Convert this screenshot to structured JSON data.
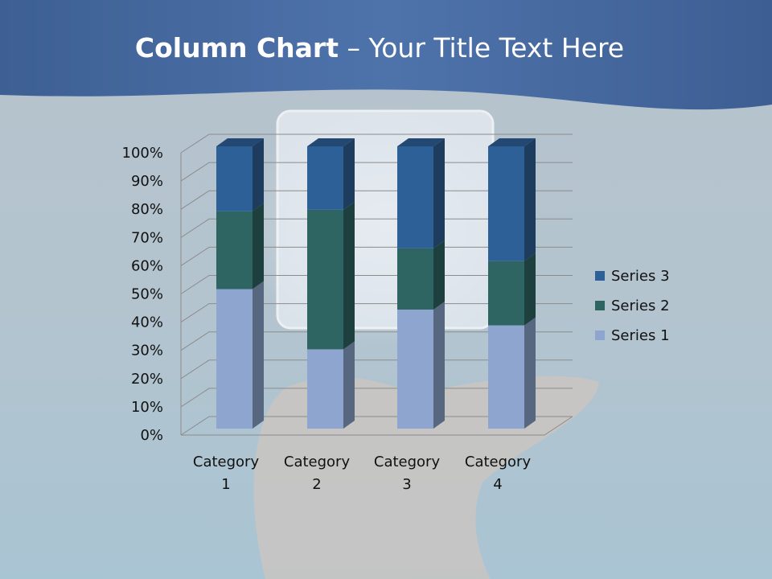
{
  "slide": {
    "title_bold": "Column Chart",
    "title_rest": " – Your Title Text Here"
  },
  "chart_data": {
    "type": "bar",
    "subtype": "stacked-100-percent-3d-column",
    "title": "",
    "categories": [
      "Category 1",
      "Category 2",
      "Category 3",
      "Category 4"
    ],
    "category_lines": [
      [
        "Category",
        "1"
      ],
      [
        "Category",
        "2"
      ],
      [
        "Category",
        "3"
      ],
      [
        "Category",
        "4"
      ]
    ],
    "series": [
      {
        "name": "Series 1",
        "values": [
          4.3,
          2.5,
          3.5,
          4.5
        ],
        "color": "#8ea6cf"
      },
      {
        "name": "Series 2",
        "values": [
          2.4,
          4.4,
          1.8,
          2.8
        ],
        "color": "#2e6563"
      },
      {
        "name": "Series 3",
        "values": [
          2,
          2,
          3,
          5
        ],
        "color": "#2e6098"
      }
    ],
    "yticks": [
      "0%",
      "10%",
      "20%",
      "30%",
      "40%",
      "50%",
      "60%",
      "70%",
      "80%",
      "90%",
      "100%"
    ],
    "ylim": [
      0,
      100
    ],
    "grid": true,
    "legend": "right"
  }
}
